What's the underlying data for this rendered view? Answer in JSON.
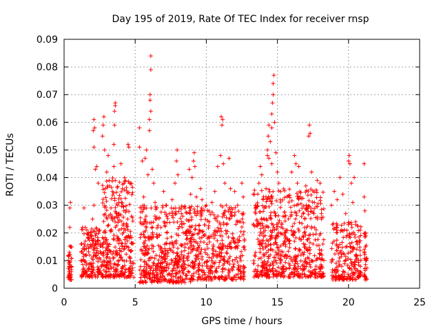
{
  "chart_data": {
    "type": "scatter",
    "title": "Day 195 of 2019, Rate Of TEC Index for receiver rnsp",
    "xlabel": "GPS time / hours",
    "ylabel": "ROTI / TECUs",
    "xlim": [
      0,
      25
    ],
    "ylim": [
      0,
      0.09
    ],
    "xticks": [
      0,
      5,
      10,
      15,
      20,
      25
    ],
    "yticks": [
      0,
      0.01,
      0.02,
      0.03,
      0.04,
      0.05,
      0.06,
      0.07,
      0.08,
      0.09
    ],
    "xtick_labels": [
      "0",
      "5",
      "10",
      "15",
      "20",
      "25"
    ],
    "ytick_labels": [
      "0",
      "0.01",
      "0.02",
      "0.03",
      "0.04",
      "0.05",
      "0.06",
      "0.07",
      "0.08",
      "0.09"
    ],
    "grid": true,
    "grid_style": "dotted",
    "legend": "none",
    "marker": "+",
    "marker_color": "#ff0000",
    "series": [
      {
        "values": [
          [
            0.3,
            0.004
          ],
          [
            0.35,
            0.012
          ],
          [
            0.4,
            0.022
          ],
          [
            0.4,
            0.029
          ],
          [
            0.45,
            0.031
          ],
          [
            0.45,
            0.008
          ],
          [
            0.5,
            0.015
          ],
          [
            0.35,
            0.005
          ],
          [
            1.2,
            0.01
          ],
          [
            1.3,
            0.022
          ],
          [
            1.4,
            0.029
          ],
          [
            1.5,
            0.017
          ],
          [
            1.6,
            0.006
          ],
          [
            1.8,
            0.012
          ],
          [
            2.0,
            0.025
          ],
          [
            2.1,
            0.03
          ],
          [
            2.2,
            0.019
          ],
          [
            2.3,
            0.044
          ],
          [
            2.4,
            0.038
          ],
          [
            2.5,
            0.021
          ],
          [
            2.6,
            0.008
          ],
          [
            2.1,
            0.051
          ],
          [
            2.05,
            0.057
          ],
          [
            2.1,
            0.061
          ],
          [
            2.15,
            0.058
          ],
          [
            2.2,
            0.043
          ],
          [
            2.7,
            0.055
          ],
          [
            2.75,
            0.059
          ],
          [
            2.8,
            0.062
          ],
          [
            2.85,
            0.05
          ],
          [
            2.9,
            0.036
          ],
          [
            3.0,
            0.042
          ],
          [
            3.1,
            0.048
          ],
          [
            3.2,
            0.037
          ],
          [
            3.3,
            0.029
          ],
          [
            3.4,
            0.035
          ],
          [
            3.5,
            0.044
          ],
          [
            3.6,
            0.039
          ],
          [
            3.7,
            0.027
          ],
          [
            3.8,
            0.018
          ],
          [
            3.9,
            0.012
          ],
          [
            3.55,
            0.059
          ],
          [
            3.55,
            0.064
          ],
          [
            3.6,
            0.066
          ],
          [
            3.6,
            0.067
          ],
          [
            3.5,
            0.052
          ],
          [
            4.0,
            0.045
          ],
          [
            4.1,
            0.036
          ],
          [
            4.2,
            0.028
          ],
          [
            4.3,
            0.021
          ],
          [
            4.4,
            0.015
          ],
          [
            4.5,
            0.052
          ],
          [
            4.55,
            0.051
          ],
          [
            4.6,
            0.038
          ],
          [
            4.7,
            0.009
          ],
          [
            5.3,
            0.051
          ],
          [
            5.3,
            0.058
          ],
          [
            5.5,
            0.046
          ],
          [
            5.6,
            0.033
          ],
          [
            5.7,
            0.047
          ],
          [
            5.8,
            0.05
          ],
          [
            5.9,
            0.041
          ],
          [
            6.0,
            0.061
          ],
          [
            6.05,
            0.068
          ],
          [
            6.05,
            0.07
          ],
          [
            6.1,
            0.064
          ],
          [
            6.0,
            0.057
          ],
          [
            6.1,
            0.079
          ],
          [
            6.1,
            0.084
          ],
          [
            6.2,
            0.043
          ],
          [
            6.3,
            0.038
          ],
          [
            6.4,
            0.031
          ],
          [
            6.5,
            0.025
          ],
          [
            6.7,
            0.019
          ],
          [
            6.9,
            0.013
          ],
          [
            7.0,
            0.035
          ],
          [
            7.2,
            0.03
          ],
          [
            7.4,
            0.027
          ],
          [
            7.6,
            0.032
          ],
          [
            7.8,
            0.038
          ],
          [
            7.9,
            0.046
          ],
          [
            7.95,
            0.05
          ],
          [
            8.0,
            0.041
          ],
          [
            8.1,
            0.029
          ],
          [
            8.3,
            0.022
          ],
          [
            8.5,
            0.016
          ],
          [
            8.7,
            0.011
          ],
          [
            8.8,
            0.043
          ],
          [
            8.9,
            0.034
          ],
          [
            9.0,
            0.04
          ],
          [
            9.1,
            0.046
          ],
          [
            9.15,
            0.049
          ],
          [
            9.2,
            0.044
          ],
          [
            9.3,
            0.033
          ],
          [
            9.4,
            0.027
          ],
          [
            9.5,
            0.021
          ],
          [
            9.6,
            0.036
          ],
          [
            9.7,
            0.032
          ],
          [
            9.8,
            0.019
          ],
          [
            9.9,
            0.014
          ],
          [
            10.0,
            0.03
          ],
          [
            10.2,
            0.024
          ],
          [
            10.4,
            0.031
          ],
          [
            10.6,
            0.035
          ],
          [
            10.8,
            0.044
          ],
          [
            11.0,
            0.048
          ],
          [
            11.05,
            0.062
          ],
          [
            11.1,
            0.059
          ],
          [
            11.15,
            0.061
          ],
          [
            11.2,
            0.045
          ],
          [
            11.3,
            0.038
          ],
          [
            11.4,
            0.03
          ],
          [
            11.6,
            0.047
          ],
          [
            11.7,
            0.036
          ],
          [
            11.8,
            0.026
          ],
          [
            11.9,
            0.018
          ],
          [
            12.0,
            0.035
          ],
          [
            12.2,
            0.03
          ],
          [
            12.4,
            0.024
          ],
          [
            12.5,
            0.038
          ],
          [
            12.6,
            0.033
          ],
          [
            12.7,
            0.014
          ],
          [
            13.3,
            0.034
          ],
          [
            13.5,
            0.029
          ],
          [
            13.7,
            0.038
          ],
          [
            13.8,
            0.044
          ],
          [
            13.9,
            0.041
          ],
          [
            14.0,
            0.032
          ],
          [
            14.2,
            0.036
          ],
          [
            14.4,
            0.047
          ],
          [
            14.5,
            0.053
          ],
          [
            14.6,
            0.058
          ],
          [
            14.6,
            0.063
          ],
          [
            14.65,
            0.067
          ],
          [
            14.7,
            0.07
          ],
          [
            14.7,
            0.074
          ],
          [
            14.75,
            0.077
          ],
          [
            14.8,
            0.06
          ],
          [
            14.9,
            0.049
          ],
          [
            15.0,
            0.042
          ],
          [
            15.1,
            0.038
          ],
          [
            15.2,
            0.032
          ],
          [
            15.4,
            0.026
          ],
          [
            15.6,
            0.021
          ],
          [
            15.8,
            0.017
          ],
          [
            14.4,
            0.059
          ],
          [
            14.35,
            0.055
          ],
          [
            14.3,
            0.05
          ],
          [
            14.3,
            0.048
          ],
          [
            14.6,
            0.045
          ],
          [
            16.0,
            0.042
          ],
          [
            16.2,
            0.048
          ],
          [
            16.3,
            0.045
          ],
          [
            16.4,
            0.038
          ],
          [
            16.5,
            0.044
          ],
          [
            16.6,
            0.033
          ],
          [
            16.8,
            0.027
          ],
          [
            17.0,
            0.037
          ],
          [
            17.2,
            0.055
          ],
          [
            17.25,
            0.059
          ],
          [
            17.3,
            0.056
          ],
          [
            17.4,
            0.042
          ],
          [
            17.6,
            0.031
          ],
          [
            17.8,
            0.039
          ],
          [
            18.0,
            0.038
          ],
          [
            18.1,
            0.025
          ],
          [
            18.2,
            0.016
          ],
          [
            18.8,
            0.03
          ],
          [
            19.0,
            0.035
          ],
          [
            19.2,
            0.032
          ],
          [
            19.4,
            0.04
          ],
          [
            19.6,
            0.034
          ],
          [
            19.8,
            0.027
          ],
          [
            20.0,
            0.046
          ],
          [
            20.05,
            0.048
          ],
          [
            20.1,
            0.045
          ],
          [
            20.2,
            0.038
          ],
          [
            20.3,
            0.031
          ],
          [
            20.4,
            0.04
          ],
          [
            20.5,
            0.024
          ],
          [
            20.6,
            0.017
          ],
          [
            20.7,
            0.01
          ],
          [
            20.8,
            0.006
          ],
          [
            21.1,
            0.045
          ],
          [
            21.1,
            0.033
          ],
          [
            21.15,
            0.028
          ],
          [
            21.2,
            0.02
          ],
          [
            21.2,
            0.015
          ],
          [
            21.25,
            0.01
          ],
          [
            21.2,
            0.004
          ]
        ]
      }
    ],
    "dense_regions": [
      {
        "x_range": [
          0.3,
          0.55
        ],
        "y_range": [
          0.003,
          0.017
        ],
        "count": 40
      },
      {
        "x_range": [
          1.2,
          2.7
        ],
        "y_range": [
          0.004,
          0.022
        ],
        "count": 170
      },
      {
        "x_range": [
          2.7,
          4.9
        ],
        "y_range": [
          0.004,
          0.04
        ],
        "count": 320
      },
      {
        "x_range": [
          5.3,
          9.0
        ],
        "y_range": [
          0.002,
          0.03
        ],
        "count": 480
      },
      {
        "x_range": [
          9.0,
          12.7
        ],
        "y_range": [
          0.003,
          0.03
        ],
        "count": 380
      },
      {
        "x_range": [
          13.3,
          18.3
        ],
        "y_range": [
          0.004,
          0.036
        ],
        "count": 620
      },
      {
        "x_range": [
          18.8,
          20.9
        ],
        "y_range": [
          0.003,
          0.024
        ],
        "count": 210
      },
      {
        "x_range": [
          21.1,
          21.3
        ],
        "y_range": [
          0.003,
          0.02
        ],
        "count": 30
      }
    ]
  }
}
